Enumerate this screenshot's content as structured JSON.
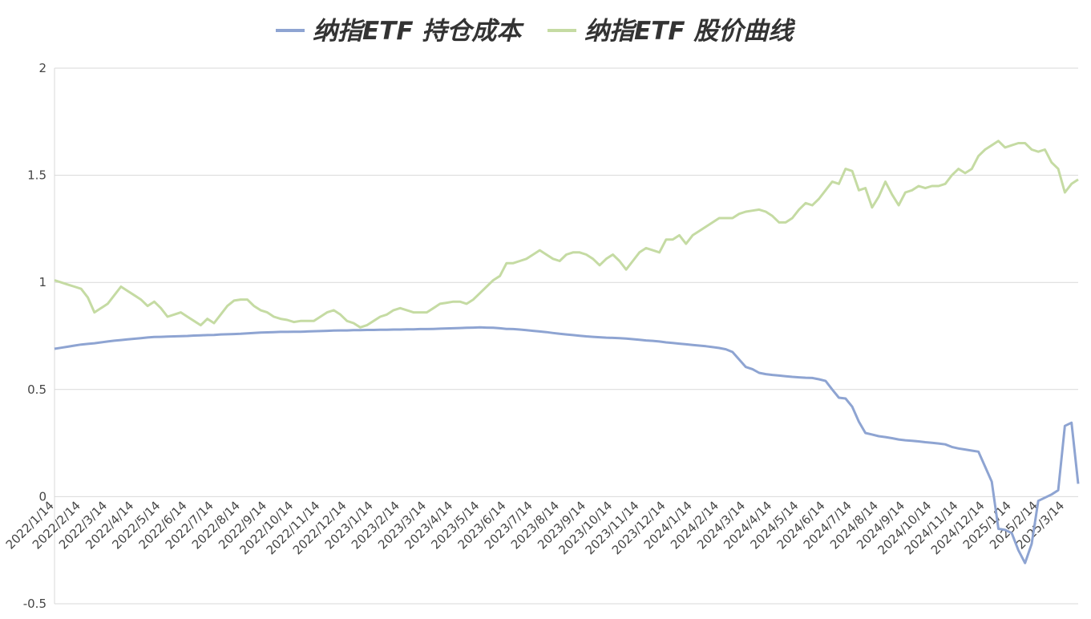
{
  "chart_data": {
    "type": "line",
    "categories": [
      "2022/1/14",
      null,
      null,
      null,
      "2022/2/14",
      null,
      null,
      null,
      "2022/3/14",
      null,
      null,
      null,
      "2022/4/14",
      null,
      null,
      null,
      "2022/5/14",
      null,
      null,
      null,
      "2022/6/14",
      null,
      null,
      null,
      "2022/7/14",
      null,
      null,
      null,
      "2022/8/14",
      null,
      null,
      null,
      "2022/9/14",
      null,
      null,
      null,
      "2022/10/14",
      null,
      null,
      null,
      "2022/11/14",
      null,
      null,
      null,
      "2022/12/14",
      null,
      null,
      null,
      "2023/1/14",
      null,
      null,
      null,
      "2023/2/14",
      null,
      null,
      null,
      "2023/3/14",
      null,
      null,
      null,
      "2023/4/14",
      null,
      null,
      null,
      "2023/5/14",
      null,
      null,
      null,
      "2023/6/14",
      null,
      null,
      null,
      "2023/7/14",
      null,
      null,
      null,
      "2023/8/14",
      null,
      null,
      null,
      "2023/9/14",
      null,
      null,
      null,
      "2023/10/14",
      null,
      null,
      null,
      "2023/11/14",
      null,
      null,
      null,
      "2023/12/14",
      null,
      null,
      null,
      "2024/1/14",
      null,
      null,
      null,
      "2024/2/14",
      null,
      null,
      null,
      "2024/3/14",
      null,
      null,
      null,
      "2024/4/14",
      null,
      null,
      null,
      "2024/5/14",
      null,
      null,
      null,
      "2024/6/14",
      null,
      null,
      null,
      "2024/7/14",
      null,
      null,
      null,
      "2024/8/14",
      null,
      null,
      null,
      "2024/9/14",
      null,
      null,
      null,
      "2024/10/14",
      null,
      null,
      null,
      "2024/11/14",
      null,
      null,
      null,
      "2024/12/14",
      null,
      null,
      null,
      "2025/1/14",
      null,
      null,
      null,
      "2025/2/14",
      null,
      null,
      null,
      "2025/3/14",
      null,
      null
    ],
    "series": [
      {
        "name": "纳指ETF 持仓成本",
        "color": "#8ea4d2",
        "values": [
          0.69,
          0.695,
          0.7,
          0.705,
          0.71,
          0.713,
          0.716,
          0.72,
          0.724,
          0.728,
          0.731,
          0.734,
          0.737,
          0.74,
          0.743,
          0.745,
          0.746,
          0.747,
          0.748,
          0.749,
          0.75,
          0.752,
          0.753,
          0.754,
          0.755,
          0.757,
          0.758,
          0.759,
          0.76,
          0.762,
          0.764,
          0.766,
          0.767,
          0.768,
          0.769,
          0.769,
          0.77,
          0.77,
          0.771,
          0.772,
          0.773,
          0.774,
          0.775,
          0.776,
          0.776,
          0.777,
          0.777,
          0.778,
          0.778,
          0.779,
          0.779,
          0.78,
          0.78,
          0.781,
          0.781,
          0.782,
          0.782,
          0.783,
          0.784,
          0.785,
          0.786,
          0.787,
          0.788,
          0.789,
          0.79,
          0.789,
          0.788,
          0.786,
          0.783,
          0.782,
          0.78,
          0.777,
          0.774,
          0.771,
          0.768,
          0.764,
          0.76,
          0.757,
          0.754,
          0.751,
          0.748,
          0.746,
          0.744,
          0.742,
          0.741,
          0.74,
          0.738,
          0.735,
          0.732,
          0.729,
          0.727,
          0.724,
          0.72,
          0.717,
          0.714,
          0.711,
          0.708,
          0.705,
          0.702,
          0.698,
          0.694,
          0.688,
          0.675,
          0.64,
          0.605,
          0.595,
          0.578,
          0.572,
          0.568,
          0.565,
          0.562,
          0.559,
          0.557,
          0.555,
          0.554,
          0.548,
          0.54,
          0.5,
          0.462,
          0.458,
          0.42,
          0.35,
          0.297,
          0.29,
          0.282,
          0.278,
          0.273,
          0.267,
          0.263,
          0.261,
          0.258,
          0.254,
          0.251,
          0.248,
          0.244,
          0.232,
          0.225,
          0.22,
          0.215,
          0.21,
          0.14,
          0.07,
          -0.15,
          -0.155,
          -0.17,
          -0.25,
          -0.31,
          -0.22,
          -0.02,
          -0.005,
          0.01,
          0.03,
          0.33,
          0.345,
          0.06
        ]
      },
      {
        "name": "纳指ETF 股价曲线",
        "color": "#c5dba3",
        "values": [
          1.01,
          1.0,
          0.99,
          0.98,
          0.97,
          0.93,
          0.86,
          0.88,
          0.9,
          0.94,
          0.98,
          0.96,
          0.94,
          0.92,
          0.89,
          0.91,
          0.88,
          0.84,
          0.85,
          0.86,
          0.84,
          0.82,
          0.8,
          0.83,
          0.81,
          0.85,
          0.89,
          0.915,
          0.92,
          0.92,
          0.89,
          0.87,
          0.86,
          0.84,
          0.83,
          0.825,
          0.815,
          0.82,
          0.82,
          0.82,
          0.84,
          0.86,
          0.87,
          0.85,
          0.82,
          0.81,
          0.79,
          0.8,
          0.82,
          0.84,
          0.85,
          0.87,
          0.88,
          0.87,
          0.86,
          0.86,
          0.86,
          0.88,
          0.9,
          0.905,
          0.91,
          0.91,
          0.9,
          0.92,
          0.95,
          0.98,
          1.01,
          1.03,
          1.09,
          1.09,
          1.1,
          1.11,
          1.13,
          1.15,
          1.13,
          1.11,
          1.1,
          1.13,
          1.14,
          1.14,
          1.13,
          1.11,
          1.08,
          1.11,
          1.13,
          1.1,
          1.06,
          1.1,
          1.14,
          1.16,
          1.15,
          1.14,
          1.2,
          1.2,
          1.22,
          1.18,
          1.22,
          1.24,
          1.26,
          1.28,
          1.3,
          1.3,
          1.3,
          1.32,
          1.33,
          1.335,
          1.34,
          1.33,
          1.31,
          1.28,
          1.28,
          1.3,
          1.34,
          1.37,
          1.36,
          1.39,
          1.43,
          1.47,
          1.46,
          1.53,
          1.52,
          1.43,
          1.44,
          1.35,
          1.4,
          1.47,
          1.41,
          1.36,
          1.42,
          1.43,
          1.45,
          1.44,
          1.45,
          1.45,
          1.46,
          1.5,
          1.53,
          1.51,
          1.53,
          1.59,
          1.62,
          1.64,
          1.66,
          1.63,
          1.64,
          1.65,
          1.65,
          1.62,
          1.61,
          1.62,
          1.56,
          1.53,
          1.42,
          1.46,
          1.48
        ]
      }
    ],
    "ylim": [
      -0.5,
      2
    ],
    "yticks": [
      -0.5,
      0,
      0.5,
      1,
      1.5,
      2
    ],
    "grid": true,
    "legend": "top"
  }
}
